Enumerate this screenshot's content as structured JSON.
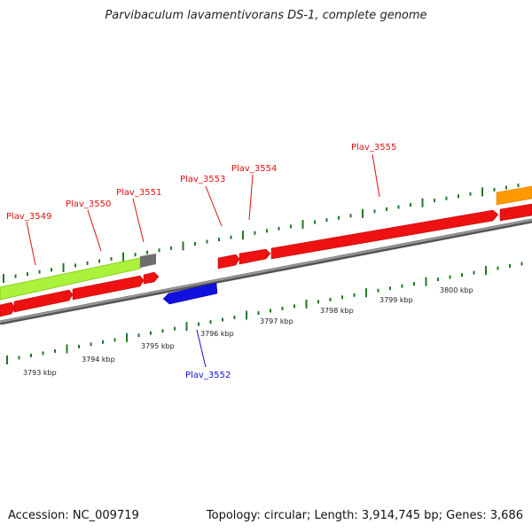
{
  "title": "Parvibaculum lavamentivorans DS-1, complete genome",
  "footer": {
    "accession": "Accession: NC_009719",
    "summary": "Topology: circular; Length: 3,914,745 bp; Genes: 3,686"
  },
  "colors": {
    "forward_gene": "#ee1111",
    "reverse_gene": "#1111dd",
    "highlight_region": "#aaf23c",
    "gray_feature": "#777777",
    "orange_feature": "#ff9900",
    "tick": "#1f7a1f",
    "backbone": "#888888"
  },
  "scale_labels": [
    "3793 kbp",
    "3794 kbp",
    "3795 kbp",
    "3796 kbp",
    "3797 kbp",
    "3798 kbp",
    "3799 kbp",
    "3800 kbp"
  ],
  "gene_labels": [
    {
      "text": "Plav_3549",
      "strand": "forward"
    },
    {
      "text": "Plav_3550",
      "strand": "forward"
    },
    {
      "text": "Plav_3551",
      "strand": "forward"
    },
    {
      "text": "Plav_3553",
      "strand": "forward"
    },
    {
      "text": "Plav_3554",
      "strand": "forward"
    },
    {
      "text": "Plav_3555",
      "strand": "forward"
    },
    {
      "text": "Plav_3552",
      "strand": "reverse"
    }
  ]
}
